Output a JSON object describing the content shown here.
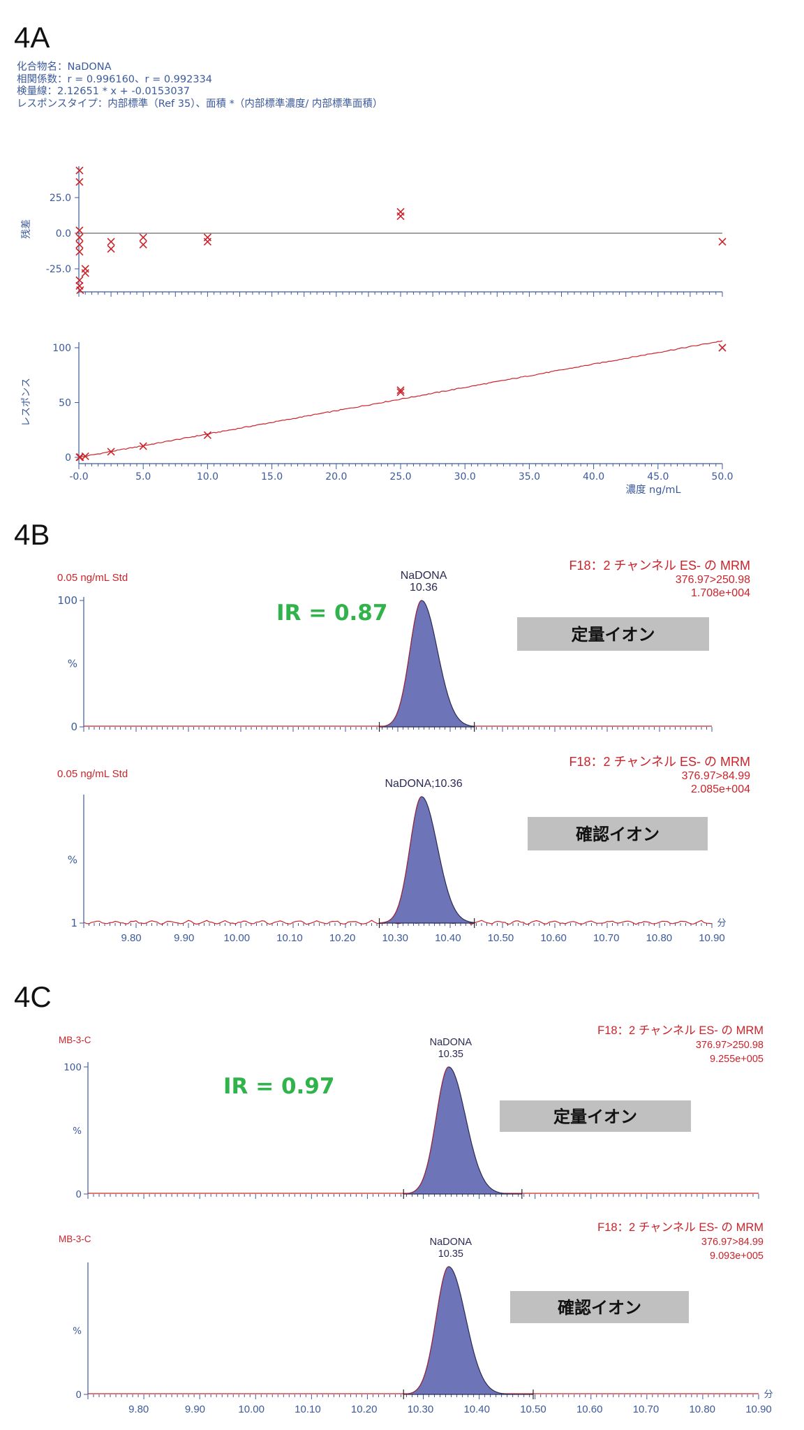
{
  "panels": {
    "a": "4A",
    "b": "4B",
    "c": "4C"
  },
  "calibration_info": {
    "compound": "化合物名：NaDONA",
    "correlation": "相関係数：r = 0.996160、r = 0.992334",
    "curve": "検量線：2.12651 * x + -0.0153037",
    "response_type": "レスポンスタイプ：内部標準（Ref 35）、面積 *（内部標準濃度/ 内部標準面積）"
  },
  "colors": {
    "axis": "#3b5a9c",
    "trace_red": "#cc2229",
    "peak_fill": "#6e74b8",
    "ir_green": "#2fb34a",
    "ion_box": "#c0c0c0"
  },
  "chart_data": [
    {
      "type": "scatter",
      "panel": "4A",
      "ylabel": "残差",
      "yticks": [
        "25.0",
        "0.0",
        "-25.0"
      ],
      "ylim": [
        -42,
        47
      ],
      "xlim": [
        0,
        50
      ],
      "points": [
        {
          "x": 0.05,
          "y": 44
        },
        {
          "x": 0.05,
          "y": 36
        },
        {
          "x": 0.05,
          "y": 2
        },
        {
          "x": 0.05,
          "y": -3
        },
        {
          "x": 0.05,
          "y": -8
        },
        {
          "x": 0.05,
          "y": -13
        },
        {
          "x": 0.05,
          "y": -33
        },
        {
          "x": 0.05,
          "y": -37
        },
        {
          "x": 0.1,
          "y": -40
        },
        {
          "x": 0.5,
          "y": -25
        },
        {
          "x": 0.5,
          "y": -28
        },
        {
          "x": 2.5,
          "y": -6
        },
        {
          "x": 2.5,
          "y": -11
        },
        {
          "x": 5.0,
          "y": -3
        },
        {
          "x": 5.0,
          "y": -8
        },
        {
          "x": 10.0,
          "y": -3
        },
        {
          "x": 10.0,
          "y": -6
        },
        {
          "x": 25.0,
          "y": 15
        },
        {
          "x": 25.0,
          "y": 12
        },
        {
          "x": 50.0,
          "y": -6
        }
      ]
    },
    {
      "type": "scatter",
      "panel": "4A",
      "ylabel": "レスポンス",
      "xlabel": "濃度 ng/mL",
      "yticks": [
        "100",
        "50",
        "0"
      ],
      "xticks": [
        "-0.0",
        "5.0",
        "10.0",
        "15.0",
        "20.0",
        "25.0",
        "30.0",
        "35.0",
        "40.0",
        "45.0",
        "50.0"
      ],
      "ylim": [
        -1,
        106
      ],
      "xlim": [
        0,
        50
      ],
      "fit_line": {
        "slope": 2.12651,
        "intercept": -0.0153037
      },
      "points": [
        {
          "x": 0.05,
          "y": 0.1
        },
        {
          "x": 0.1,
          "y": 0.2
        },
        {
          "x": 0.5,
          "y": 1.0
        },
        {
          "x": 2.5,
          "y": 5.1
        },
        {
          "x": 5.0,
          "y": 10.2
        },
        {
          "x": 10.0,
          "y": 20.3
        },
        {
          "x": 25.0,
          "y": 61.3
        },
        {
          "x": 25.0,
          "y": 59.4
        },
        {
          "x": 50.0,
          "y": 100.0
        }
      ]
    },
    {
      "type": "area",
      "panel": "4B",
      "sample": "0.05 ng/mL Std",
      "peak_label": [
        "NaDONA",
        "10.36"
      ],
      "channel": [
        "F18：2 チャンネル ES- の MRM",
        "376.97>250.98",
        "1.708e+004"
      ],
      "ir": "IR = 0.87",
      "ion": "定量イオン",
      "yticks": [
        "100",
        "%",
        "0"
      ],
      "xlim": [
        9.71,
        10.9
      ],
      "peak": {
        "center": 10.35,
        "height": 100
      },
      "integration": [
        10.27,
        10.45
      ]
    },
    {
      "type": "area",
      "panel": "4B",
      "sample": "0.05 ng/mL Std",
      "peak_label": [
        "NaDONA;10.36"
      ],
      "channel": [
        "F18：2 チャンネル ES- の MRM",
        "376.97>84.99",
        "2.085e+004"
      ],
      "ion": "確認イオン",
      "yticks": [
        "%",
        "1"
      ],
      "xlim": [
        9.71,
        10.9
      ],
      "xticks": [
        "9.80",
        "9.90",
        "10.00",
        "10.10",
        "10.20",
        "10.30",
        "10.40",
        "10.50",
        "10.60",
        "10.70",
        "10.80",
        "10.90"
      ],
      "xunit": "分",
      "peak": {
        "center": 10.35,
        "height": 100
      },
      "integration": [
        10.27,
        10.45
      ]
    },
    {
      "type": "area",
      "panel": "4C",
      "sample": "MB-3-C",
      "peak_label": [
        "NaDONA",
        "10.35"
      ],
      "channel": [
        "F18：2 チャンネル ES- の MRM",
        "376.97>250.98",
        "9.255e+005"
      ],
      "ir": "IR = 0.97",
      "ion": "定量イオン",
      "yticks": [
        "100",
        "%",
        "0"
      ],
      "xlim": [
        9.71,
        10.9
      ],
      "peak": {
        "center": 10.35,
        "height": 100
      },
      "integration": [
        10.27,
        10.48
      ]
    },
    {
      "type": "area",
      "panel": "4C",
      "sample": "MB-3-C",
      "peak_label": [
        "NaDONA",
        "10.35"
      ],
      "channel": [
        "F18：2 チャンネル ES- の MRM",
        "376.97>84.99",
        "9.093e+005"
      ],
      "ion": "確認イオン",
      "yticks": [
        "%",
        "0"
      ],
      "xlim": [
        9.71,
        10.9
      ],
      "xticks": [
        "9.80",
        "9.90",
        "10.00",
        "10.10",
        "10.20",
        "10.30",
        "10.40",
        "10.50",
        "10.60",
        "10.70",
        "10.80",
        "10.90"
      ],
      "xunit": "分",
      "peak": {
        "center": 10.35,
        "height": 100
      },
      "integration": [
        10.27,
        10.5
      ]
    }
  ]
}
